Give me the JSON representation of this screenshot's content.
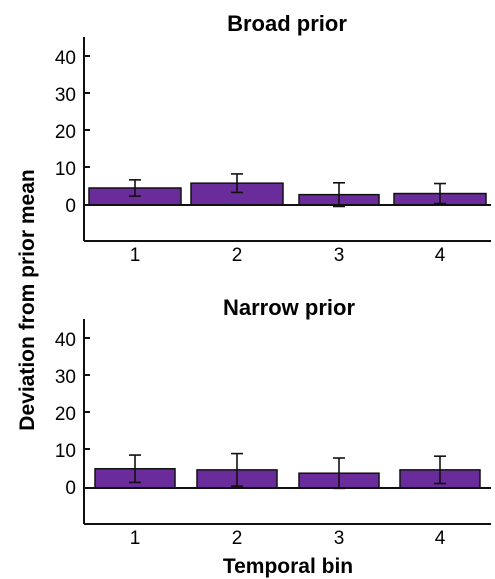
{
  "chart_data": [
    {
      "type": "bar",
      "title": "Broad prior",
      "categories": [
        "1",
        "2",
        "3",
        "4"
      ],
      "values": [
        4.6,
        5.9,
        2.8,
        3.1
      ],
      "error": [
        2.2,
        2.5,
        3.2,
        2.7
      ],
      "y_ticks": [
        "0",
        "10",
        "20",
        "30",
        "40"
      ],
      "ylim": [
        -10,
        45
      ],
      "bar_color": "#6a2c9a"
    },
    {
      "type": "bar",
      "title": "Narrow prior",
      "categories": [
        "1",
        "2",
        "3",
        "4"
      ],
      "values": [
        5.2,
        4.9,
        4.0,
        4.9
      ],
      "error": [
        3.7,
        4.4,
        4.1,
        3.7
      ],
      "y_ticks": [
        "0",
        "10",
        "20",
        "30",
        "40"
      ],
      "ylim": [
        -10,
        45
      ],
      "bar_color": "#6a2c9a"
    }
  ],
  "ylabel": "Deviation from prior mean",
  "xlabel": "Temporal bin"
}
